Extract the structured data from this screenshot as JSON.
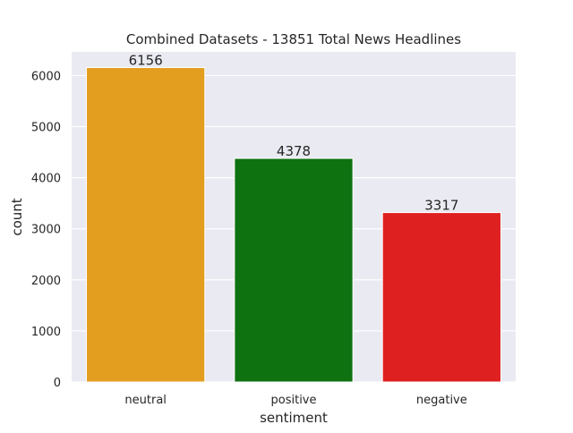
{
  "chart_data": {
    "type": "bar",
    "title": "Combined Datasets - 13851 Total News Headlines",
    "xlabel": "sentiment",
    "ylabel": "count",
    "categories": [
      "neutral",
      "positive",
      "negative"
    ],
    "values": [
      6156,
      4378,
      3317
    ],
    "data_labels": [
      "6156",
      "4378",
      "3317"
    ],
    "colors": [
      "#e39e20",
      "#0e7210",
      "#df2020"
    ],
    "ylim": [
      0,
      6463
    ],
    "yticks": [
      0,
      1000,
      2000,
      3000,
      4000,
      5000,
      6000
    ],
    "ytick_labels": [
      "0",
      "1000",
      "2000",
      "3000",
      "4000",
      "5000",
      "6000"
    ],
    "grid": true,
    "legend": "none",
    "background": "#eaeaf2",
    "grid_color": "#ffffff"
  }
}
